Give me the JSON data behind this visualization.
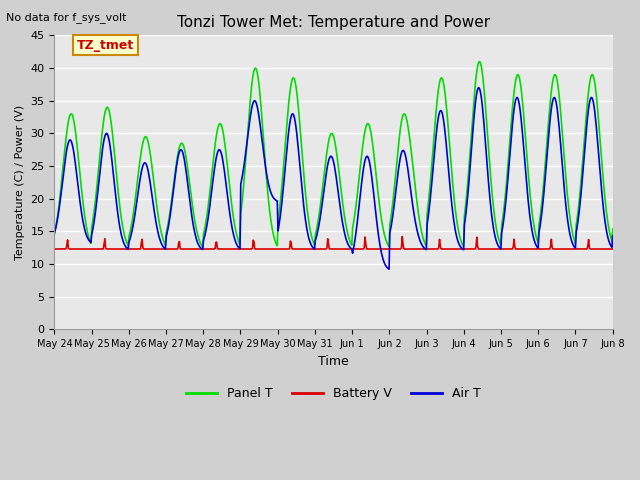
{
  "title": "Tonzi Tower Met: Temperature and Power",
  "top_left_text": "No data for f_sys_volt",
  "xlabel": "Time",
  "ylabel": "Temperature (C) / Power (V)",
  "ylim": [
    0,
    45
  ],
  "yticks": [
    0,
    5,
    10,
    15,
    20,
    25,
    30,
    35,
    40,
    45
  ],
  "legend_entries": [
    "Panel T",
    "Battery V",
    "Air T"
  ],
  "legend_colors": [
    "#00dd00",
    "#dd0000",
    "#0000dd"
  ],
  "panel_t_color": "#00dd00",
  "battery_v_color": "#dd0000",
  "air_t_color": "#0000dd",
  "line_width": 1.2,
  "plot_bg_color": "#e8e8e8",
  "fig_bg_color": "#d0d0d0",
  "annotation_text": "TZ_tmet",
  "annotation_color": "#cc0000",
  "annotation_bg": "#ffffcc",
  "x_tick_labels": [
    "May 24",
    "May 25",
    "May 26",
    "May 27",
    "May 28",
    "May 29",
    "May 30",
    "May 31",
    "Jun 1",
    "Jun 2",
    "Jun 3",
    "Jun 4",
    "Jun 5",
    "Jun 6",
    "Jun 7",
    "Jun 8"
  ],
  "panel_peaks": [
    33,
    34,
    29.5,
    28.5,
    31.5,
    40,
    38.5,
    30,
    31.5,
    34.5,
    38.5,
    41,
    39
  ],
  "panel_mins": [
    12,
    12,
    12,
    12,
    12,
    12,
    12,
    12,
    12,
    12,
    12,
    12,
    12
  ],
  "panel_peak_offsets": [
    0.45,
    0.42,
    0.45,
    0.42,
    0.45,
    0.4,
    0.42,
    0.45,
    0.42,
    0.42,
    0.4,
    0.42,
    0.45
  ],
  "air_peaks": [
    29,
    30,
    25.5,
    27.5,
    27.5,
    35,
    33,
    26.5,
    26.5,
    30,
    33.5,
    37,
    35.5
  ],
  "air_mins": [
    13,
    12,
    12,
    12,
    12,
    19.5,
    12,
    12,
    9,
    12,
    12,
    12,
    12
  ],
  "air_peak_offsets": [
    0.42,
    0.4,
    0.43,
    0.4,
    0.43,
    0.38,
    0.4,
    0.43,
    0.4,
    0.4,
    0.38,
    0.4,
    0.43
  ],
  "battery_base": 12.3,
  "battery_spike_days": [
    0.35,
    1.35,
    2.35,
    3.35,
    4.35,
    5.35,
    6.35,
    7.35,
    8.35,
    9.35,
    10.35,
    11.35,
    12.35,
    13.35,
    14.35
  ],
  "battery_spike_heights": [
    1.5,
    1.8,
    1.8,
    1.5,
    1.5,
    1.8,
    1.5,
    1.8,
    2.0,
    2.0,
    1.5,
    1.8,
    1.5,
    1.5,
    1.5
  ]
}
